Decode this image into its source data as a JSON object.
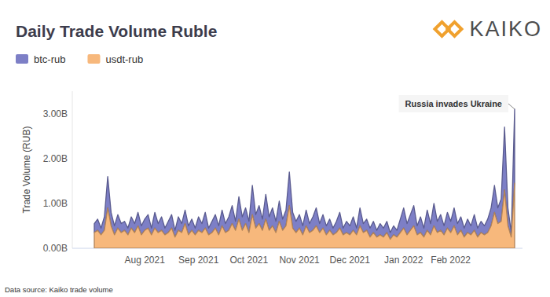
{
  "chart_data": {
    "type": "area",
    "title": "Daily Trade Volume Ruble",
    "logo": "KAIKO",
    "source": "Data source: Kaiko trade volume",
    "y_label": "Trade Volume (RUB)",
    "stacked": true,
    "grid": false,
    "legend": "top-left",
    "annotations": [
      {
        "text": "Russia invades Ukraine",
        "index": 125
      }
    ],
    "ylim": [
      0,
      3500000000
    ],
    "yticks": [
      {
        "value": 0,
        "label": "0.00B"
      },
      {
        "value": 1000000000,
        "label": "1.00B"
      },
      {
        "value": 2000000000,
        "label": "2.00B"
      },
      {
        "value": 3000000000,
        "label": "3.00B"
      }
    ],
    "categories": [
      null,
      null,
      null,
      null,
      null,
      null,
      null,
      null,
      null,
      null,
      null,
      null,
      null,
      null,
      null,
      "Aug 2021",
      null,
      null,
      null,
      null,
      null,
      null,
      null,
      null,
      null,
      null,
      null,
      null,
      null,
      null,
      null,
      "Sep 2021",
      null,
      null,
      null,
      null,
      null,
      null,
      null,
      null,
      null,
      null,
      null,
      null,
      null,
      null,
      "Oct 2021",
      null,
      null,
      null,
      null,
      null,
      null,
      null,
      null,
      null,
      null,
      null,
      null,
      null,
      null,
      "Nov 2021",
      null,
      null,
      null,
      null,
      null,
      null,
      null,
      null,
      null,
      null,
      null,
      null,
      null,
      null,
      "Dec 2021",
      null,
      null,
      null,
      null,
      null,
      null,
      null,
      null,
      null,
      null,
      null,
      null,
      null,
      null,
      null,
      "Jan 2022",
      null,
      null,
      null,
      null,
      null,
      null,
      null,
      null,
      null,
      null,
      null,
      null,
      null,
      "Feb 2022",
      null,
      null,
      null,
      null,
      null,
      null,
      null,
      null,
      null,
      null,
      null,
      null,
      null,
      null,
      null,
      null,
      null,
      null,
      null
    ],
    "series": [
      {
        "name": "btc-rub",
        "color": "#7d7fc6",
        "values": [
          200000000,
          250000000,
          150000000,
          300000000,
          700000000,
          300000000,
          200000000,
          300000000,
          200000000,
          200000000,
          150000000,
          250000000,
          200000000,
          300000000,
          200000000,
          250000000,
          300000000,
          150000000,
          350000000,
          200000000,
          300000000,
          150000000,
          250000000,
          300000000,
          150000000,
          300000000,
          200000000,
          300000000,
          200000000,
          250000000,
          150000000,
          300000000,
          200000000,
          350000000,
          150000000,
          250000000,
          300000000,
          200000000,
          350000000,
          200000000,
          300000000,
          400000000,
          200000000,
          500000000,
          300000000,
          350000000,
          250000000,
          650000000,
          300000000,
          400000000,
          250000000,
          550000000,
          300000000,
          400000000,
          250000000,
          450000000,
          250000000,
          350000000,
          750000000,
          350000000,
          250000000,
          300000000,
          200000000,
          350000000,
          200000000,
          300000000,
          400000000,
          200000000,
          300000000,
          200000000,
          250000000,
          150000000,
          250000000,
          350000000,
          150000000,
          250000000,
          200000000,
          300000000,
          150000000,
          400000000,
          200000000,
          250000000,
          200000000,
          250000000,
          150000000,
          250000000,
          200000000,
          250000000,
          150000000,
          200000000,
          150000000,
          300000000,
          450000000,
          250000000,
          350000000,
          450000000,
          200000000,
          350000000,
          200000000,
          450000000,
          250000000,
          500000000,
          250000000,
          350000000,
          200000000,
          350000000,
          250000000,
          400000000,
          250000000,
          300000000,
          200000000,
          300000000,
          200000000,
          350000000,
          200000000,
          250000000,
          200000000,
          300000000,
          400000000,
          600000000,
          350000000,
          500000000,
          1400000000,
          400000000,
          100000000,
          1650000000
        ]
      },
      {
        "name": "usdt-rub",
        "color": "#f7b87c",
        "values": [
          350000000,
          400000000,
          300000000,
          400000000,
          900000000,
          500000000,
          300000000,
          450000000,
          350000000,
          400000000,
          300000000,
          450000000,
          350000000,
          500000000,
          300000000,
          400000000,
          450000000,
          300000000,
          450000000,
          350000000,
          400000000,
          300000000,
          350000000,
          450000000,
          250000000,
          400000000,
          350000000,
          550000000,
          300000000,
          400000000,
          300000000,
          400000000,
          350000000,
          450000000,
          300000000,
          350000000,
          450000000,
          300000000,
          500000000,
          350000000,
          400000000,
          550000000,
          400000000,
          650000000,
          400000000,
          550000000,
          350000000,
          750000000,
          450000000,
          550000000,
          400000000,
          650000000,
          400000000,
          500000000,
          350000000,
          600000000,
          400000000,
          500000000,
          950000000,
          450000000,
          350000000,
          450000000,
          300000000,
          500000000,
          350000000,
          400000000,
          500000000,
          350000000,
          450000000,
          300000000,
          400000000,
          300000000,
          350000000,
          450000000,
          300000000,
          350000000,
          300000000,
          400000000,
          300000000,
          500000000,
          350000000,
          400000000,
          250000000,
          350000000,
          250000000,
          300000000,
          250000000,
          350000000,
          200000000,
          300000000,
          250000000,
          350000000,
          450000000,
          300000000,
          400000000,
          500000000,
          300000000,
          350000000,
          250000000,
          400000000,
          300000000,
          500000000,
          350000000,
          400000000,
          300000000,
          450000000,
          350000000,
          500000000,
          300000000,
          400000000,
          250000000,
          350000000,
          300000000,
          400000000,
          250000000,
          350000000,
          300000000,
          350000000,
          500000000,
          800000000,
          550000000,
          600000000,
          1300000000,
          500000000,
          250000000,
          1450000000
        ]
      }
    ]
  }
}
